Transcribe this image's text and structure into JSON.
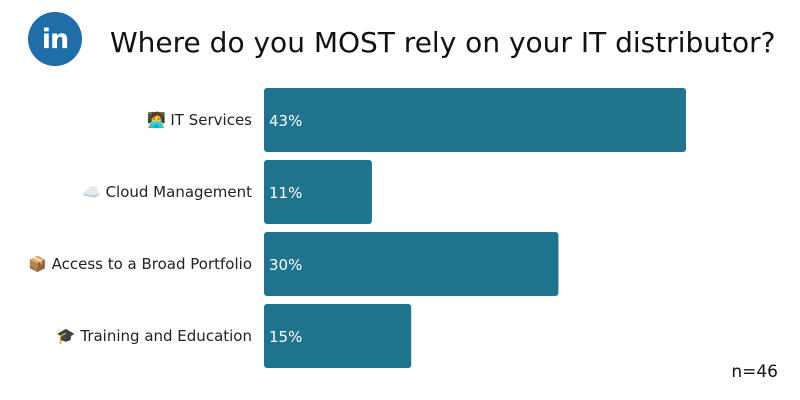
{
  "logo": {
    "icon": "linkedin-icon",
    "text": "in",
    "color": "#1f6ea8"
  },
  "title": "Where do you MOST rely on your IT distributor?",
  "sample_size": "n=46",
  "chart_data": {
    "type": "bar",
    "orientation": "horizontal",
    "title": "Where do you MOST rely on your IT distributor?",
    "categories": [
      "🧑‍💻 IT Services",
      "☁️ Cloud Management",
      "📦 Access to a Broad Portfolio",
      "🎓 Training and Education"
    ],
    "values": [
      43,
      11,
      30,
      15
    ],
    "value_labels": [
      "43%",
      "11%",
      "30%",
      "15%"
    ],
    "unit": "%",
    "bar_color": "#1f738c",
    "xlim": [
      0,
      43
    ],
    "grid": false,
    "legend": "none"
  }
}
